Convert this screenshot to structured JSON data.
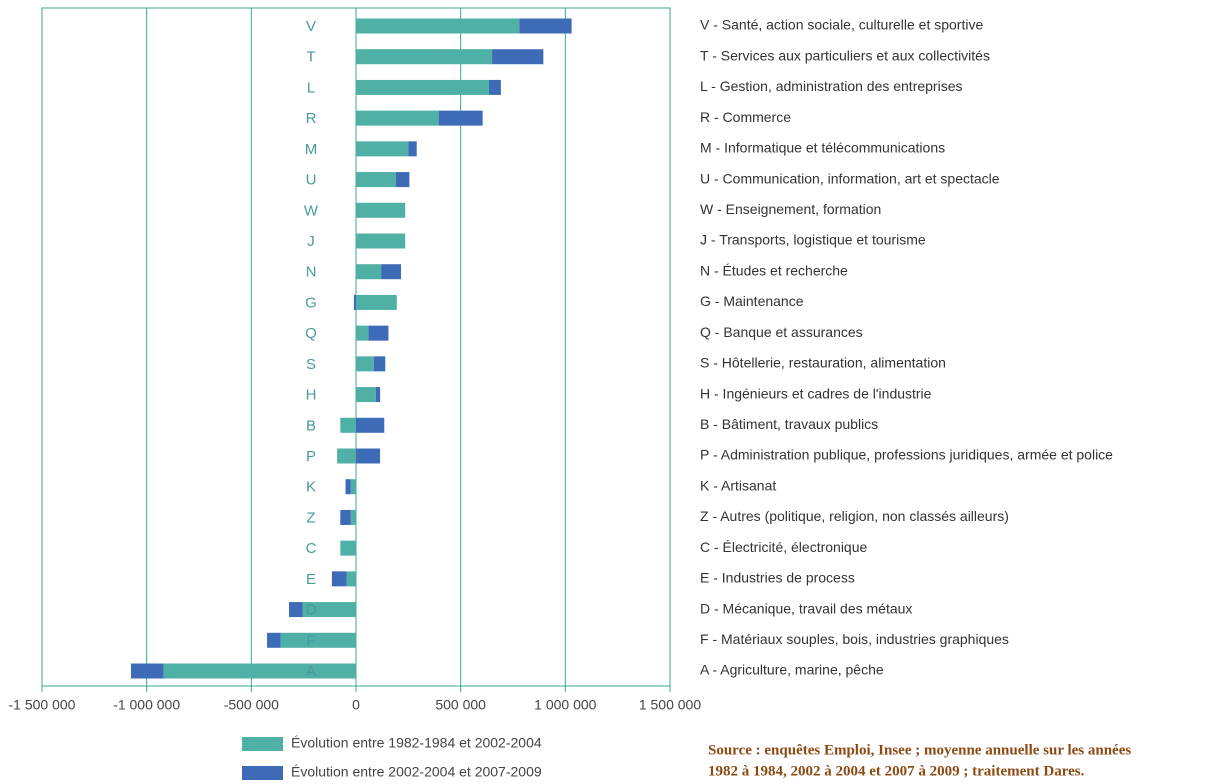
{
  "chart_data": {
    "type": "stacked_barh",
    "categories": [
      "V",
      "T",
      "L",
      "R",
      "M",
      "U",
      "W",
      "J",
      "N",
      "G",
      "Q",
      "S",
      "H",
      "B",
      "P",
      "K",
      "Z",
      "C",
      "E",
      "D",
      "F",
      "A"
    ],
    "category_names": [
      "V - Santé, action sociale, culturelle et sportive",
      "T - Services aux particuliers et aux collectivités",
      "L - Gestion, administration des entreprises",
      "R - Commerce",
      "M - Informatique et télécommunications",
      "U - Communication, information, art et spectacle",
      "W - Enseignement, formation",
      "J - Transports, logistique et tourisme",
      "N - Études et recherche",
      "G - Maintenance",
      "Q - Banque et assurances",
      "S - Hôtellerie, restauration, alimentation",
      "H - Ingénieurs et cadres de l'industrie",
      "B - Bâtiment, travaux publics",
      "P - Administration publique, professions juridiques, armée et police",
      "K - Artisanat",
      "Z - Autres (politique, religion, non classés ailleurs)",
      "C - Électricité, électronique",
      "E - Industries de process",
      "D - Mécanique, travail des métaux",
      "F - Matériaux souples, bois, industries graphiques",
      "A - Agriculture, marine, pêche"
    ],
    "series": [
      {
        "name": "Évolution entre 1982-1984 et 2002-2004",
        "color": "#4fb0a5",
        "values": [
          780000,
          650000,
          635000,
          395000,
          250000,
          190000,
          235000,
          235000,
          120000,
          195000,
          60000,
          85000,
          95000,
          -75000,
          -90000,
          -25000,
          -25000,
          -75000,
          -45000,
          -255000,
          -360000,
          -920000
        ]
      },
      {
        "name": "Évolution entre 2002-2004 et 2007-2009",
        "color": "#3d6bb8",
        "values": [
          250000,
          245000,
          57000,
          210000,
          40000,
          65000,
          0,
          0,
          95000,
          -10000,
          95000,
          55000,
          20000,
          135000,
          115000,
          -25000,
          -50000,
          0,
          -70000,
          -65000,
          -65000,
          -155000
        ]
      }
    ],
    "xlim": [
      -1500000,
      1500000
    ],
    "xticks": [
      {
        "value": -1500000,
        "label": "-1 500 000"
      },
      {
        "value": -1000000,
        "label": "-1 000 000"
      },
      {
        "value": -500000,
        "label": "-500 000"
      },
      0,
      {
        "value": 500000,
        "label": "500 000"
      },
      {
        "value": 1000000,
        "label": "1 000 000"
      },
      {
        "value": 1500000,
        "label": "1 500 000"
      }
    ],
    "grid": true,
    "source": [
      "Source : enquêtes Emploi, Insee ; moyenne annuelle sur les années",
      "1982 à 1984, 2002 à 2004 et 2007 à 2009 ; traitement Dares."
    ]
  }
}
